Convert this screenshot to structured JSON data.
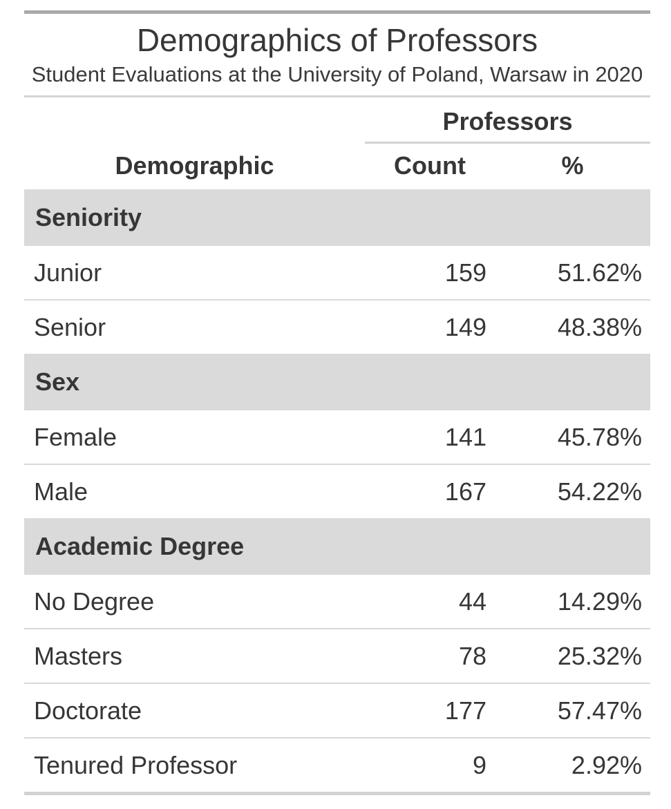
{
  "chart_data": {
    "type": "table",
    "title": "Demographics of Professors",
    "subtitle": "Student Evaluations at the University of Poland, Warsaw in 2020",
    "column_spanner": "Professors",
    "columns": {
      "demographic": "Demographic",
      "count": "Count",
      "percent": "%"
    },
    "groups": [
      {
        "label": "Seniority",
        "rows": [
          {
            "label": "Junior",
            "count": 159,
            "percent": "51.62%"
          },
          {
            "label": "Senior",
            "count": 149,
            "percent": "48.38%"
          }
        ]
      },
      {
        "label": "Sex",
        "rows": [
          {
            "label": "Female",
            "count": 141,
            "percent": "45.78%"
          },
          {
            "label": "Male",
            "count": 167,
            "percent": "54.22%"
          }
        ]
      },
      {
        "label": "Academic Degree",
        "rows": [
          {
            "label": "No Degree",
            "count": 44,
            "percent": "14.29%"
          },
          {
            "label": "Masters",
            "count": 78,
            "percent": "25.32%"
          },
          {
            "label": "Doctorate",
            "count": 177,
            "percent": "57.47%"
          },
          {
            "label": "Tenured Professor",
            "count": 9,
            "percent": "2.92%"
          }
        ]
      }
    ],
    "layout": {
      "group_rows_shaded": true,
      "numeric_alignment": "right",
      "header_alignment": "center",
      "grid": "horizontal-rules-only"
    }
  },
  "colors": {
    "background": "#ffffff",
    "text": "#363636",
    "group_band": "#dadada",
    "top_rule": "#a9a9a9",
    "bottom_rule": "#d2d2d2",
    "heading_rule": "#d5d5d5",
    "spanner_rule": "#d3d3d3",
    "row_divider": "#d8d8d8"
  }
}
